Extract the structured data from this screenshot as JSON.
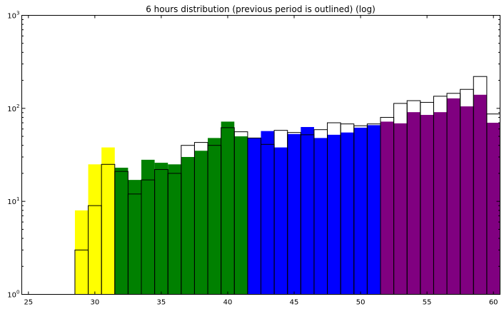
{
  "chart_data": {
    "type": "bar",
    "title": "6 hours distribution (previous period is outlined) (log)",
    "xlabel": "",
    "ylabel": "",
    "xlim": [
      24.5,
      60.5
    ],
    "ylim": [
      1,
      1000
    ],
    "y_scale": "log",
    "grid": false,
    "legend": "none",
    "x_ticks": [
      {
        "value": 25,
        "label": "25"
      },
      {
        "value": 30,
        "label": "30"
      },
      {
        "value": 35,
        "label": "35"
      },
      {
        "value": 40,
        "label": "40"
      },
      {
        "value": 45,
        "label": "45"
      },
      {
        "value": 50,
        "label": "50"
      },
      {
        "value": 55,
        "label": "55"
      },
      {
        "value": 60,
        "label": "60"
      }
    ],
    "y_ticks": [
      {
        "value": 1,
        "base": "10",
        "exp": "0"
      },
      {
        "value": 10,
        "base": "10",
        "exp": "1"
      },
      {
        "value": 100,
        "base": "10",
        "exp": "2"
      },
      {
        "value": 1000,
        "base": "10",
        "exp": "3"
      }
    ],
    "bin_width": 1,
    "colors": {
      "yellow": "#ffff00",
      "green": "#008000",
      "blue": "#0000ff",
      "purple": "#800080",
      "outline": "#000000"
    },
    "bins": [
      {
        "x": 29,
        "current": 8,
        "previous": 3,
        "color": "yellow"
      },
      {
        "x": 30,
        "current": 25,
        "previous": 9,
        "color": "yellow"
      },
      {
        "x": 31,
        "current": 38,
        "previous": 25,
        "color": "yellow"
      },
      {
        "x": 32,
        "current": 23,
        "previous": 21,
        "color": "green"
      },
      {
        "x": 33,
        "current": 17,
        "previous": 12,
        "color": "green"
      },
      {
        "x": 34,
        "current": 28,
        "previous": 17,
        "color": "green"
      },
      {
        "x": 35,
        "current": 26,
        "previous": 22,
        "color": "green"
      },
      {
        "x": 36,
        "current": 25,
        "previous": 20,
        "color": "green"
      },
      {
        "x": 37,
        "current": 30,
        "previous": 40,
        "color": "green"
      },
      {
        "x": 38,
        "current": 35,
        "previous": 43,
        "color": "green"
      },
      {
        "x": 39,
        "current": 48,
        "previous": 40,
        "color": "green"
      },
      {
        "x": 40,
        "current": 72,
        "previous": 62,
        "color": "green"
      },
      {
        "x": 41,
        "current": 50,
        "previous": 56,
        "color": "green"
      },
      {
        "x": 42,
        "current": 48,
        "previous": 48,
        "color": "blue"
      },
      {
        "x": 43,
        "current": 57,
        "previous": 41,
        "color": "blue"
      },
      {
        "x": 44,
        "current": 38,
        "previous": 58,
        "color": "blue"
      },
      {
        "x": 45,
        "current": 53,
        "previous": 55,
        "color": "blue"
      },
      {
        "x": 46,
        "current": 63,
        "previous": 52,
        "color": "blue"
      },
      {
        "x": 47,
        "current": 48,
        "previous": 59,
        "color": "blue"
      },
      {
        "x": 48,
        "current": 52,
        "previous": 70,
        "color": "blue"
      },
      {
        "x": 49,
        "current": 55,
        "previous": 68,
        "color": "blue"
      },
      {
        "x": 50,
        "current": 62,
        "previous": 65,
        "color": "blue"
      },
      {
        "x": 51,
        "current": 66,
        "previous": 68,
        "color": "blue"
      },
      {
        "x": 52,
        "current": 72,
        "previous": 80,
        "color": "purple"
      },
      {
        "x": 53,
        "current": 69,
        "previous": 113,
        "color": "purple"
      },
      {
        "x": 54,
        "current": 91,
        "previous": 121,
        "color": "purple"
      },
      {
        "x": 55,
        "current": 85,
        "previous": 116,
        "color": "purple"
      },
      {
        "x": 56,
        "current": 91,
        "previous": 135,
        "color": "purple"
      },
      {
        "x": 57,
        "current": 128,
        "previous": 145,
        "color": "purple"
      },
      {
        "x": 58,
        "current": 105,
        "previous": 160,
        "color": "purple"
      },
      {
        "x": 59,
        "current": 140,
        "previous": 220,
        "color": "purple"
      },
      {
        "x": 60,
        "current": 70,
        "previous": 87,
        "color": "purple"
      }
    ]
  }
}
